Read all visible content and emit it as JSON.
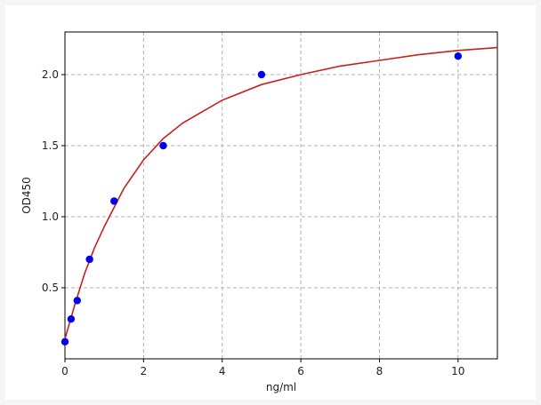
{
  "chart_data": {
    "type": "scatter",
    "xlabel": "ng/ml",
    "ylabel": "OD450",
    "xlim": [
      0,
      11
    ],
    "ylim": [
      0,
      2.3
    ],
    "xticks": [
      0,
      2,
      4,
      6,
      8,
      10
    ],
    "yticks": [
      0.5,
      {
        "value": 1,
        "label": "1.0"
      },
      1.5,
      {
        "value": 2,
        "label": "2.0"
      }
    ],
    "grid": true,
    "series": [
      {
        "style": "line",
        "color": "#c8201e",
        "x": [
          0,
          0.25,
          0.5,
          0.75,
          1,
          1.5,
          2,
          2.5,
          3,
          4,
          5,
          6,
          7,
          8,
          9,
          10,
          11
        ],
        "values": [
          0.14,
          0.38,
          0.6,
          0.78,
          0.93,
          1.2,
          1.4,
          1.55,
          1.66,
          1.82,
          1.93,
          2.0,
          2.06,
          2.1,
          2.14,
          2.17,
          2.19
        ]
      },
      {
        "style": "points",
        "color": "#0000ee",
        "x": [
          0,
          0.156,
          0.3125,
          0.625,
          1.25,
          2.5,
          5,
          10
        ],
        "values": [
          0.12,
          0.28,
          0.41,
          0.7,
          1.11,
          1.5,
          2.0,
          2.13
        ]
      }
    ]
  }
}
